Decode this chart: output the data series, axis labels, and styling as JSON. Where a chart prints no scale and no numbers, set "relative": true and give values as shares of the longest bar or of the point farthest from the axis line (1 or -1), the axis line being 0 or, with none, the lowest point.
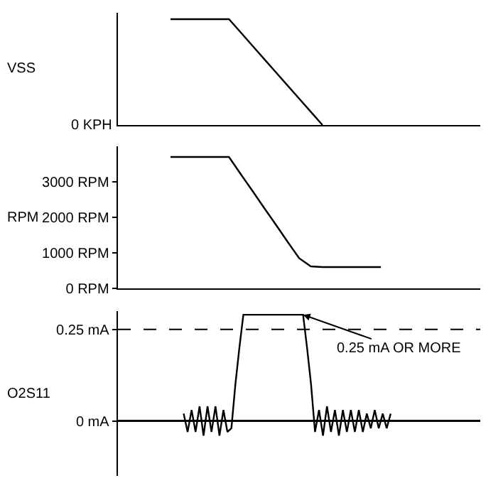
{
  "chart_data": [
    {
      "type": "line",
      "ylabel": "VSS",
      "relative": true,
      "tick_labels": false,
      "color": "#000000",
      "categories": [
        null,
        null,
        null,
        null,
        null,
        null,
        null,
        null,
        null,
        null,
        null,
        null,
        null,
        null,
        null,
        null,
        null,
        null,
        null,
        null,
        null,
        null,
        null,
        null,
        null,
        null,
        null,
        null,
        null,
        null,
        null
      ],
      "values": [
        null,
        null,
        null,
        null,
        1,
        1,
        1,
        1,
        1,
        1,
        0.875,
        0.75,
        0.625,
        0.5,
        0.375,
        0.25,
        0.125,
        0,
        null,
        null,
        null,
        null,
        null,
        null,
        null,
        null,
        null,
        null,
        null,
        null,
        null
      ],
      "annotations": [
        "0 KPH"
      ]
    },
    {
      "type": "line",
      "ylabel": "RPM",
      "tick_labels": "y",
      "color": "#000000",
      "ylim": [
        0,
        4000
      ],
      "yticks": [
        {
          "value": 0,
          "label": "0 RPM"
        },
        {
          "value": 1000,
          "label": "1000 RPM"
        },
        {
          "value": 2000,
          "label": "2000 RPM"
        },
        {
          "value": 3000,
          "label": "3000 RPM"
        }
      ],
      "categories": [
        null,
        null,
        null,
        null,
        null,
        null,
        null,
        null,
        null,
        null,
        null,
        null,
        null,
        null,
        null,
        null,
        null,
        null,
        null,
        null,
        null,
        null,
        null,
        null,
        null,
        null,
        null,
        null,
        null,
        null,
        null
      ],
      "values": [
        null,
        null,
        null,
        null,
        3700,
        3700,
        3700,
        3700,
        3700,
        3700,
        3220,
        2750,
        2270,
        1800,
        1320,
        850,
        620,
        600,
        600,
        600,
        600,
        600,
        600,
        null,
        null,
        null,
        null,
        null,
        null,
        null,
        null
      ]
    },
    {
      "type": "line",
      "ylabel": "O2S11",
      "tick_labels": "y",
      "color": "#000000",
      "ylim": [
        -0.15,
        0.3
      ],
      "yticks": [
        {
          "value": 0,
          "label": "0 mA"
        },
        {
          "value": 0.25,
          "label": "0.25 mA"
        }
      ],
      "ref_lines": [
        {
          "axis": "y",
          "value": 0.25,
          "line_style": "dashed",
          "color": "#000000"
        }
      ],
      "annotations": [
        "0.25 mA OR MORE"
      ],
      "categories": [
        null,
        null,
        null,
        null,
        null,
        null,
        null,
        null,
        null,
        null,
        null,
        null,
        null,
        null,
        null,
        null,
        null,
        null,
        null,
        null,
        null,
        null,
        null,
        null,
        null,
        null,
        null,
        null,
        null,
        null,
        null,
        null,
        null,
        null,
        null,
        null,
        null,
        null,
        null,
        null,
        null,
        null,
        null,
        null,
        null,
        null,
        null,
        null,
        null,
        null,
        null,
        null,
        null,
        null,
        null,
        null,
        null,
        null,
        null,
        null,
        null,
        null,
        null,
        null,
        null,
        null,
        null,
        null,
        null,
        null,
        null,
        null,
        null,
        null,
        null,
        null,
        null,
        null,
        null,
        null,
        null,
        null,
        null,
        null,
        null,
        null,
        null,
        null,
        null,
        null,
        null
      ],
      "values": [
        null,
        null,
        null,
        null,
        null,
        null,
        null,
        null,
        null,
        null,
        null,
        null,
        null,
        null,
        null,
        null,
        0.02,
        -0.03,
        0.03,
        -0.03,
        0.04,
        -0.04,
        0.04,
        -0.03,
        0.04,
        -0.04,
        0.03,
        -0.03,
        -0.02,
        0.1,
        0.2,
        0.29,
        0.29,
        0.29,
        0.29,
        0.29,
        0.29,
        0.29,
        0.29,
        0.29,
        0.29,
        0.29,
        0.29,
        0.29,
        0.29,
        0.29,
        0.29,
        0.2,
        0.1,
        -0.03,
        0.03,
        -0.04,
        0.04,
        -0.03,
        0.03,
        -0.04,
        0.03,
        -0.03,
        0.03,
        -0.03,
        0.03,
        -0.03,
        0.02,
        -0.02,
        0.03,
        -0.02,
        0.02,
        -0.02,
        0.02,
        null,
        null,
        null,
        null,
        null,
        null,
        null,
        null,
        null,
        null,
        null,
        null,
        null,
        null,
        null,
        null,
        null,
        null,
        null,
        null,
        null,
        null
      ]
    }
  ]
}
